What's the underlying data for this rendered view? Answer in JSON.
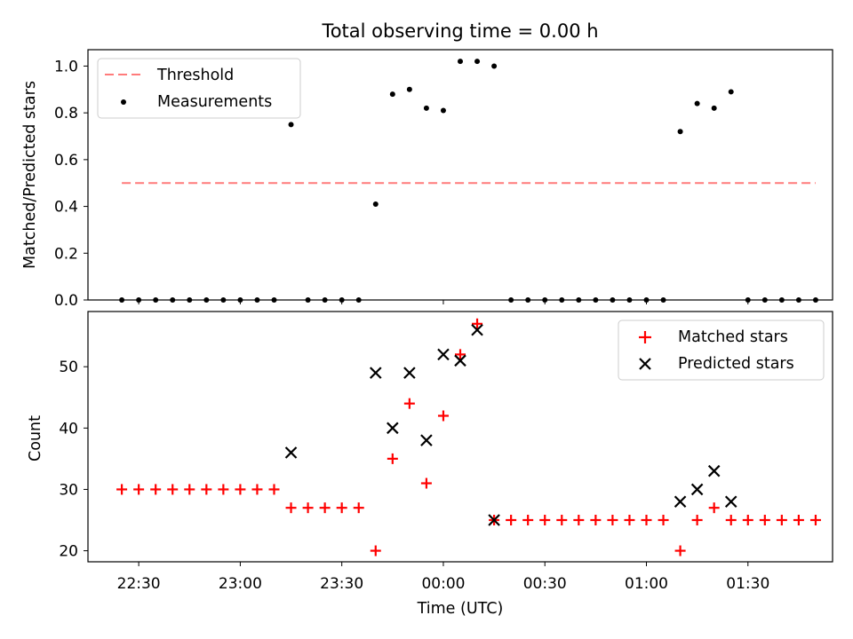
{
  "chart_data": [
    {
      "type": "scatter",
      "title": "Total observing time = 0.00 h",
      "xlabel": "",
      "ylabel": "Matched/Predicted stars",
      "ylim": [
        0,
        1.07
      ],
      "yticks": [
        "0.0",
        "0.2",
        "0.4",
        "0.6",
        "0.8",
        "1.0"
      ],
      "ytick_values": [
        0,
        0.2,
        0.4,
        0.6,
        0.8,
        1.0
      ],
      "legend_position": "top-left",
      "threshold": {
        "name": "Threshold",
        "color": "#ff7b7b",
        "value": 0.5,
        "x_start": "22:25",
        "x_end": "01:50"
      },
      "series": [
        {
          "name": "Measurements",
          "color": "#000000",
          "x": [
            "22:25",
            "22:30",
            "22:35",
            "22:40",
            "22:45",
            "22:50",
            "22:55",
            "23:00",
            "23:05",
            "23:10",
            "23:15",
            "23:20",
            "23:25",
            "23:30",
            "23:35",
            "23:40",
            "23:45",
            "23:50",
            "23:55",
            "00:00",
            "00:05",
            "00:10",
            "00:15",
            "00:20",
            "00:25",
            "00:30",
            "00:35",
            "00:40",
            "00:45",
            "00:50",
            "00:55",
            "01:00",
            "01:05",
            "01:10",
            "01:15",
            "01:20",
            "01:25",
            "01:30",
            "01:35",
            "01:40",
            "01:45",
            "01:50"
          ],
          "values": [
            0,
            0,
            0,
            0,
            0,
            0,
            0,
            0,
            0,
            0,
            0.75,
            0,
            0,
            0,
            0,
            0.41,
            0.88,
            0.9,
            0.82,
            0.81,
            1.02,
            1.02,
            1.0,
            0,
            0,
            0,
            0,
            0,
            0,
            0,
            0,
            0,
            0,
            0.72,
            0.84,
            0.82,
            0.89,
            0,
            0,
            0,
            0,
            0
          ]
        }
      ]
    },
    {
      "type": "scatter",
      "title": "",
      "xlabel": "Time (UTC)",
      "ylabel": "Count",
      "ylim": [
        18.2,
        59
      ],
      "yticks": [
        "20",
        "30",
        "40",
        "50"
      ],
      "ytick_values": [
        20,
        30,
        40,
        50
      ],
      "xticks": [
        "22:30",
        "23:00",
        "23:30",
        "00:00",
        "00:30",
        "01:00",
        "01:30"
      ],
      "legend_position": "top-right",
      "series": [
        {
          "name": "Matched stars",
          "marker": "plus",
          "color": "#ff0000",
          "x": [
            "22:25",
            "22:30",
            "22:35",
            "22:40",
            "22:45",
            "22:50",
            "22:55",
            "23:00",
            "23:05",
            "23:10",
            "23:15",
            "23:20",
            "23:25",
            "23:30",
            "23:35",
            "23:40",
            "23:45",
            "23:50",
            "23:55",
            "00:00",
            "00:05",
            "00:10",
            "00:15",
            "00:20",
            "00:25",
            "00:30",
            "00:35",
            "00:40",
            "00:45",
            "00:50",
            "00:55",
            "01:00",
            "01:05",
            "01:10",
            "01:15",
            "01:20",
            "01:25",
            "01:30",
            "01:35",
            "01:40",
            "01:45",
            "01:50"
          ],
          "values": [
            30,
            30,
            30,
            30,
            30,
            30,
            30,
            30,
            30,
            30,
            27,
            27,
            27,
            27,
            27,
            20,
            35,
            44,
            31,
            42,
            52,
            57,
            25,
            25,
            25,
            25,
            25,
            25,
            25,
            25,
            25,
            25,
            25,
            20,
            25,
            27,
            25,
            25,
            25,
            25,
            25,
            25
          ]
        },
        {
          "name": "Predicted stars",
          "marker": "x",
          "color": "#000000",
          "x": [
            "23:15",
            "23:40",
            "23:45",
            "23:50",
            "23:55",
            "00:00",
            "00:05",
            "00:10",
            "00:15",
            "01:10",
            "01:15",
            "01:20",
            "01:25"
          ],
          "values": [
            36,
            49,
            40,
            49,
            38,
            52,
            51,
            56,
            25,
            28,
            30,
            33,
            28
          ]
        }
      ]
    }
  ],
  "x_axis": {
    "min": "22:15",
    "max": "01:55"
  }
}
